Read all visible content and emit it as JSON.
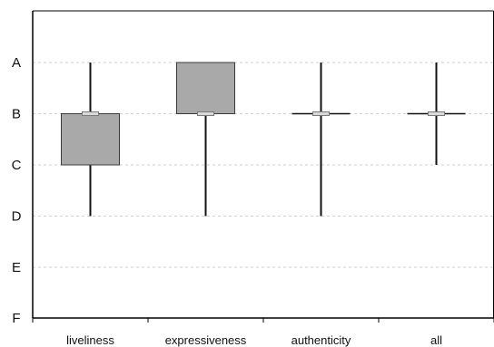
{
  "chart_data": {
    "type": "box",
    "title": "",
    "xlabel": "",
    "ylabel": "",
    "y_levels": [
      "A",
      "B",
      "C",
      "D",
      "E",
      "F"
    ],
    "categories": [
      "liveliness",
      "expressiveness",
      "authenticity",
      "all"
    ],
    "boxes": [
      {
        "category": "liveliness",
        "whisker_top": "A",
        "q3": "B",
        "median": "B",
        "q1": "C",
        "whisker_bottom": "D"
      },
      {
        "category": "expressiveness",
        "whisker_top": "A",
        "q3": "A",
        "median": "B",
        "q1": "B",
        "whisker_bottom": "D"
      },
      {
        "category": "authenticity",
        "whisker_top": "A",
        "q3": "B",
        "median": "B",
        "q1": "B",
        "whisker_bottom": "D"
      },
      {
        "category": "all",
        "whisker_top": "A",
        "q3": "B",
        "median": "B",
        "q1": "B",
        "whisker_bottom": "C"
      }
    ],
    "grid": true,
    "legend": "none",
    "colors": {
      "box_fill": "#a9a9a9",
      "box_stroke": "#3a3a3a",
      "median_marker": "#d9d9d9",
      "grid": "#cfcfcf",
      "axis": "#000000"
    }
  }
}
